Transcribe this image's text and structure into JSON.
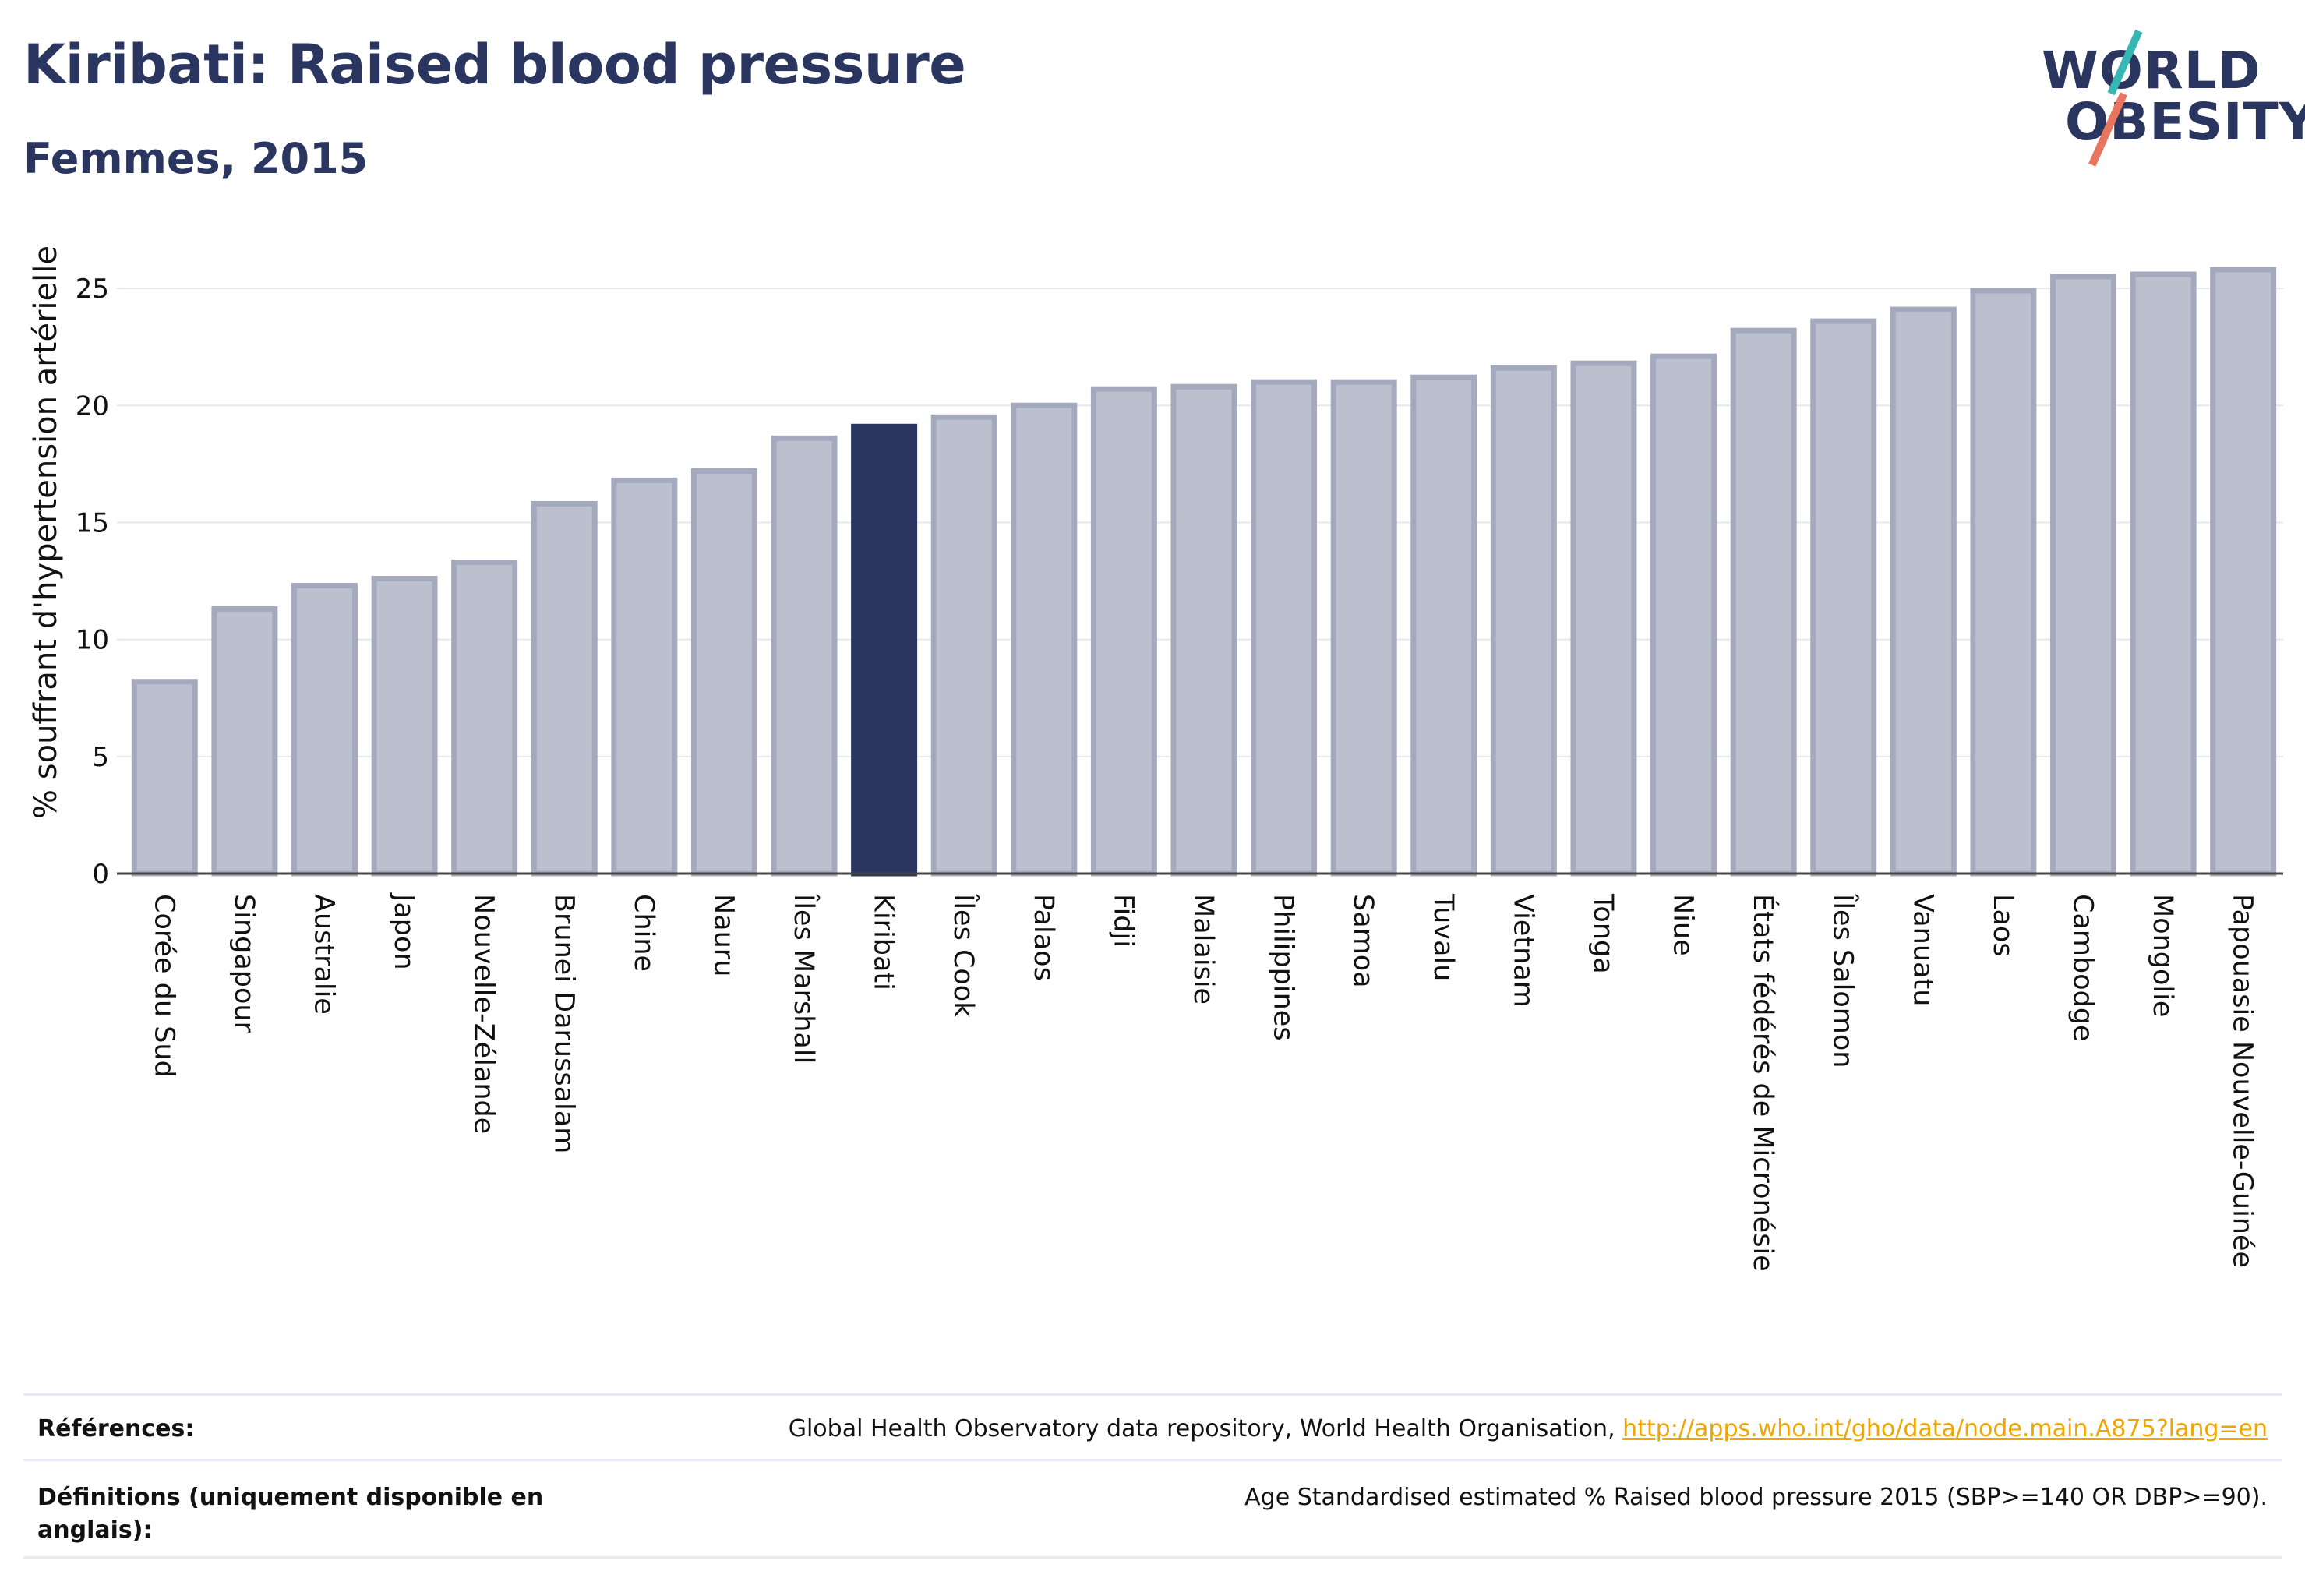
{
  "header": {
    "title": "Kiribati: Raised blood pressure",
    "subtitle": "Femmes, 2015"
  },
  "logo": {
    "line1": "WORLD",
    "line2": "OBESITY"
  },
  "colors": {
    "highlight": "#2a3560",
    "bar": "#bcc0ce",
    "bar_border": "#a4a9bd",
    "grid": "#e6e8ef",
    "link": "#f0a500",
    "logo_teal": "#36b7b4",
    "logo_coral": "#e8765f"
  },
  "chart_data": {
    "type": "bar",
    "ylabel": "% souffrant d'hypertension artérielle",
    "ylim": [
      0,
      27
    ],
    "yticks": [
      0,
      5,
      10,
      15,
      20,
      25
    ],
    "grid": true,
    "highlight": "Kiribati",
    "categories": [
      "Corée du Sud",
      "Singapour",
      "Australie",
      "Japon",
      "Nouvelle-Zélande",
      "Brunei Darussalam",
      "Chine",
      "Nauru",
      "Îles Marshall",
      "Kiribati",
      "Îles Cook",
      "Palaos",
      "Fidji",
      "Malaisie",
      "Philippines",
      "Samoa",
      "Tuvalu",
      "Vietnam",
      "Tonga",
      "Niue",
      "États fédérés de Micronésie",
      "Îles Salomon",
      "Vanuatu",
      "Laos",
      "Cambodge",
      "Mongolie",
      "Papouasie Nouvelle-Guinée"
    ],
    "values": [
      8.2,
      11.3,
      12.3,
      12.6,
      13.3,
      15.8,
      16.8,
      17.2,
      18.6,
      19.1,
      19.5,
      20.0,
      20.7,
      20.8,
      21.0,
      21.0,
      21.2,
      21.6,
      21.8,
      22.1,
      23.2,
      23.6,
      24.1,
      24.9,
      25.5,
      25.6,
      25.8
    ]
  },
  "footer": {
    "references_label": "Références:",
    "references_text": "Global Health Observatory data repository, World Health Organisation, ",
    "references_link": "http://apps.who.int/gho/data/node.main.A875?lang=en",
    "definitions_label": "Définitions (uniquement disponible en anglais):",
    "definitions_text": "Age Standardised estimated % Raised blood pressure 2015 (SBP>=140 OR DBP>=90)."
  }
}
